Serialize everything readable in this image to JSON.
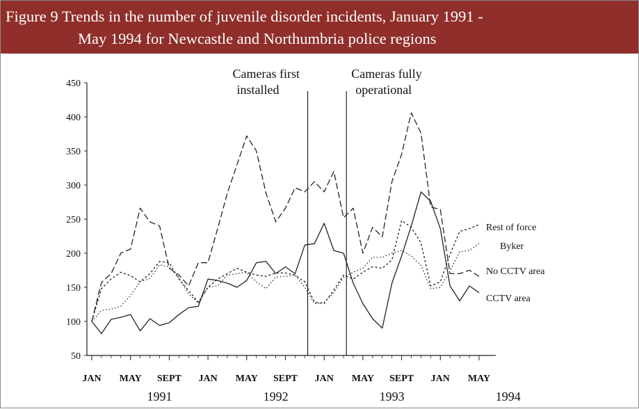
{
  "header": {
    "title_line1": "Figure 9  Trends in the number of juvenile disorder incidents, January 1991 -",
    "title_line2": "May 1994 for Newcastle and Northumbria police regions"
  },
  "chart_data": {
    "type": "line",
    "title": "Figure 9  Trends in the number of juvenile disorder incidents, January 1991 - May 1994 for Newcastle and Northumbria police regions",
    "xlabel": "",
    "ylabel": "",
    "ylim": [
      50,
      450
    ],
    "yticks": [
      450,
      400,
      350,
      300,
      250,
      200,
      150,
      100,
      50
    ],
    "xlim": [
      1,
      41
    ],
    "x": [
      1,
      2,
      3,
      4,
      5,
      6,
      7,
      8,
      9,
      10,
      11,
      12,
      13,
      14,
      15,
      16,
      17,
      18,
      19,
      20,
      21,
      22,
      23,
      24,
      25,
      26,
      27,
      28,
      29,
      30,
      31,
      32,
      33,
      34,
      35,
      36,
      37,
      38,
      39,
      40,
      41
    ],
    "xticks": [
      {
        "x": 1,
        "label": "JAN"
      },
      {
        "x": 5,
        "label": "MAY"
      },
      {
        "x": 9,
        "label": "SEPT"
      },
      {
        "x": 13,
        "label": "JAN"
      },
      {
        "x": 17,
        "label": "MAY"
      },
      {
        "x": 21,
        "label": "SEPT"
      },
      {
        "x": 25,
        "label": "JAN"
      },
      {
        "x": 29,
        "label": "MAY"
      },
      {
        "x": 33,
        "label": "SEPT"
      },
      {
        "x": 37,
        "label": "JAN"
      },
      {
        "x": 41,
        "label": "MAY"
      }
    ],
    "year_labels": [
      {
        "x": 8,
        "label": "1991"
      },
      {
        "x": 20,
        "label": "1992"
      },
      {
        "x": 32,
        "label": "1993"
      },
      {
        "x": 44,
        "label": "1994"
      }
    ],
    "annotations": [
      {
        "x": 23.3,
        "line1": "Cameras first",
        "line2": "installed"
      },
      {
        "x": 27.3,
        "line1": "Cameras fully",
        "line2": "operational"
      }
    ],
    "series": [
      {
        "name": "Rest of force",
        "dash": "3,3",
        "values": [
          100,
          148,
          162,
          172,
          167,
          158,
          170,
          188,
          186,
          162,
          145,
          128,
          150,
          162,
          170,
          178,
          172,
          168,
          166,
          171,
          171,
          168,
          158,
          128,
          126,
          146,
          168,
          162,
          172,
          180,
          178,
          190,
          248,
          238,
          215,
          152,
          158,
          198,
          232,
          236,
          242
        ]
      },
      {
        "name": "Byker",
        "dash": "1.5,3",
        "values": [
          100,
          116,
          118,
          122,
          138,
          158,
          163,
          183,
          180,
          164,
          140,
          127,
          150,
          152,
          168,
          170,
          172,
          158,
          148,
          165,
          166,
          168,
          150,
          126,
          128,
          142,
          165,
          172,
          178,
          194,
          194,
          200,
          204,
          196,
          182,
          148,
          150,
          174,
          202,
          204,
          214
        ]
      },
      {
        "name": "No CCTV area",
        "dash": "9,4",
        "values": [
          100,
          157,
          170,
          200,
          206,
          266,
          246,
          240,
          178,
          168,
          152,
          186,
          186,
          236,
          288,
          330,
          372,
          350,
          288,
          246,
          266,
          296,
          290,
          305,
          290,
          320,
          252,
          266,
          200,
          238,
          224,
          305,
          345,
          406,
          376,
          268,
          264,
          170,
          170,
          175,
          166
        ]
      },
      {
        "name": "CCTV area",
        "dash": "",
        "values": [
          100,
          82,
          103,
          106,
          110,
          86,
          104,
          94,
          98,
          110,
          120,
          122,
          162,
          160,
          156,
          150,
          160,
          186,
          188,
          170,
          180,
          170,
          212,
          214,
          244,
          204,
          200,
          156,
          126,
          104,
          90,
          156,
          196,
          240,
          290,
          276,
          236,
          152,
          130,
          152,
          142
        ]
      }
    ],
    "legend": "right, next to line ends"
  }
}
